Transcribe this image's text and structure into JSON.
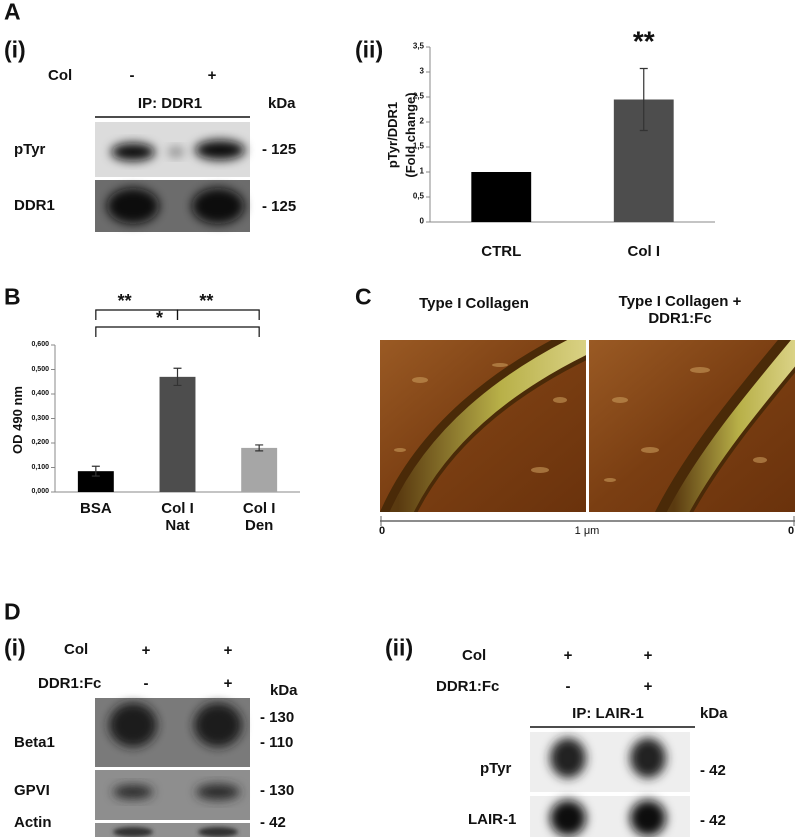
{
  "panel_a": {
    "label": "A",
    "sub_label": "(i)",
    "condition": "Col",
    "lanes": [
      "-",
      "+"
    ],
    "ip": "IP: DDR1",
    "unit": "kDa",
    "blots": [
      {
        "label": "pTyr",
        "marker": "- 125"
      },
      {
        "label": "DDR1",
        "marker": "- 125"
      }
    ],
    "chart_label": "(ii)"
  },
  "panel_b": {
    "label": "B"
  },
  "panel_c": {
    "label": "C",
    "titles": [
      "Type I Collagen",
      "Type I Collagen + DDR1:Fc"
    ],
    "scale": [
      "0",
      "1 μm",
      "0"
    ]
  },
  "panel_d": {
    "label": "D",
    "left": {
      "label": "(i)",
      "rows": [
        {
          "label": "Col",
          "lanes": [
            "+",
            "+"
          ]
        },
        {
          "label": "DDR1:Fc",
          "lanes": [
            "-",
            "+"
          ]
        }
      ],
      "unit": "kDa",
      "markers": [
        "- 130",
        "- 110",
        "- 130",
        "- 42"
      ],
      "blots": [
        "Beta1",
        "GPVI",
        "Actin"
      ]
    },
    "right": {
      "label": "(ii)",
      "rows": [
        {
          "label": "Col",
          "lanes": [
            "+",
            "+"
          ]
        },
        {
          "label": "DDR1:Fc",
          "lanes": [
            "-",
            "+"
          ]
        }
      ],
      "ip": "IP: LAIR-1",
      "unit": "kDa",
      "blots": [
        {
          "label": "pTyr",
          "marker": "- 42"
        },
        {
          "label": "LAIR-1",
          "marker": "- 42"
        }
      ]
    }
  },
  "chart_data": [
    {
      "type": "bar",
      "y_label": [
        "pTyr/DDR1",
        "(Fold change)"
      ],
      "categories": [
        "CTRL",
        "Col I"
      ],
      "values": [
        1,
        2.45
      ],
      "errors": [
        null,
        0.62
      ],
      "colors": [
        "#000000",
        "#4d4d4d"
      ],
      "ylim": [
        0,
        3.5
      ],
      "yticks": [
        0,
        {
          "value": 0.5,
          "label": "0,5"
        },
        1,
        {
          "value": 1.5,
          "label": "1,5"
        },
        2,
        {
          "value": 2.5,
          "label": "2,5"
        },
        3,
        {
          "value": 3.5,
          "label": "3,5"
        }
      ],
      "annotations": [
        "**"
      ]
    },
    {
      "type": "bar",
      "y_label": [
        "OD 490 nm"
      ],
      "categories": [
        "BSA",
        "Col I Nat",
        "Col I Den"
      ],
      "values": [
        0.085,
        0.47,
        0.18
      ],
      "errors": [
        0.02,
        0.035,
        0.012
      ],
      "colors": [
        "#000000",
        "#4d4d4d",
        "#a6a6a6"
      ],
      "ylim": [
        0,
        0.6
      ],
      "yticks": [
        {
          "value": 0,
          "label": "0,000"
        },
        {
          "value": 0.1,
          "label": "0,100"
        },
        {
          "value": 0.2,
          "label": "0,200"
        },
        {
          "value": 0.3,
          "label": "0,300"
        },
        {
          "value": 0.4,
          "label": "0,400"
        },
        {
          "value": 0.5,
          "label": "0,500"
        },
        {
          "value": 0.6,
          "label": "0,600"
        }
      ],
      "annotations": [
        "**",
        "**",
        "*"
      ]
    }
  ]
}
